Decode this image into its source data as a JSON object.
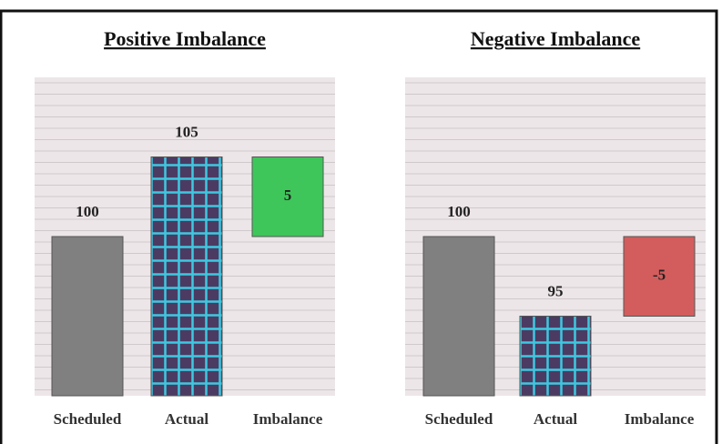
{
  "chart_data": [
    {
      "type": "waterfall",
      "title": "Positive Imbalance",
      "categories": [
        "Scheduled",
        "Actual",
        "Imbalance"
      ],
      "values": [
        100,
        105,
        5
      ],
      "colors": [
        "#808080",
        "#4b3b63",
        "#3ec65a"
      ],
      "ylim": [
        90,
        110
      ]
    },
    {
      "type": "waterfall",
      "title": "Negative Imbalance",
      "categories": [
        "Scheduled",
        "Actual",
        "Imbalance"
      ],
      "values": [
        100,
        95,
        -5
      ],
      "colors": [
        "#808080",
        "#4b3b63",
        "#d35d5d"
      ],
      "ylim": [
        90,
        110
      ]
    }
  ]
}
